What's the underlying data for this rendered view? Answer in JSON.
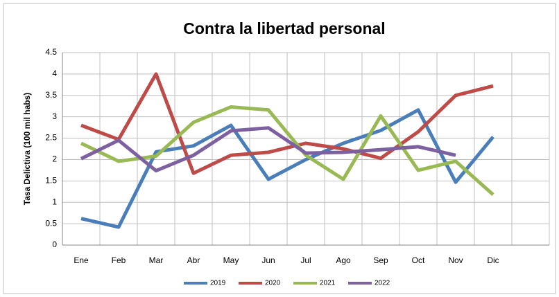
{
  "chart_data": {
    "type": "line",
    "title": "Contra la libertad personal",
    "y_label": "Tasa Delictiva (100 mil  habs)",
    "categories": [
      "Ene",
      "Feb",
      "Mar",
      "Abr",
      "May",
      "Jun",
      "Jul",
      "Ago",
      "Sep",
      "Oct",
      "Nov",
      "Dic",
      null
    ],
    "series": [
      {
        "name": "2019",
        "color": "#4a7ebb",
        "values": [
          0.62,
          0.42,
          2.18,
          2.32,
          2.8,
          1.54,
          2.0,
          2.38,
          2.68,
          3.16,
          1.47,
          2.53,
          null
        ]
      },
      {
        "name": "2020",
        "color": "#be4b48",
        "values": [
          2.8,
          2.47,
          4.0,
          1.68,
          2.1,
          2.17,
          2.38,
          2.25,
          2.03,
          2.65,
          3.5,
          3.72,
          null
        ]
      },
      {
        "name": "2021",
        "color": "#98b954",
        "values": [
          2.38,
          1.96,
          2.08,
          2.87,
          3.23,
          3.16,
          2.1,
          1.54,
          3.02,
          1.75,
          1.96,
          1.18,
          null
        ]
      },
      {
        "name": "2022",
        "color": "#7d60a0",
        "values": [
          2.02,
          2.45,
          1.74,
          2.1,
          2.67,
          2.74,
          2.15,
          2.17,
          2.23,
          2.3,
          2.1,
          null,
          null
        ]
      }
    ],
    "ylim": [
      0,
      4.5
    ],
    "yticks": [
      0,
      0.5,
      1,
      1.5,
      2,
      2.5,
      3,
      3.5,
      4,
      4.5
    ],
    "grid": true,
    "legend": "bottom"
  }
}
